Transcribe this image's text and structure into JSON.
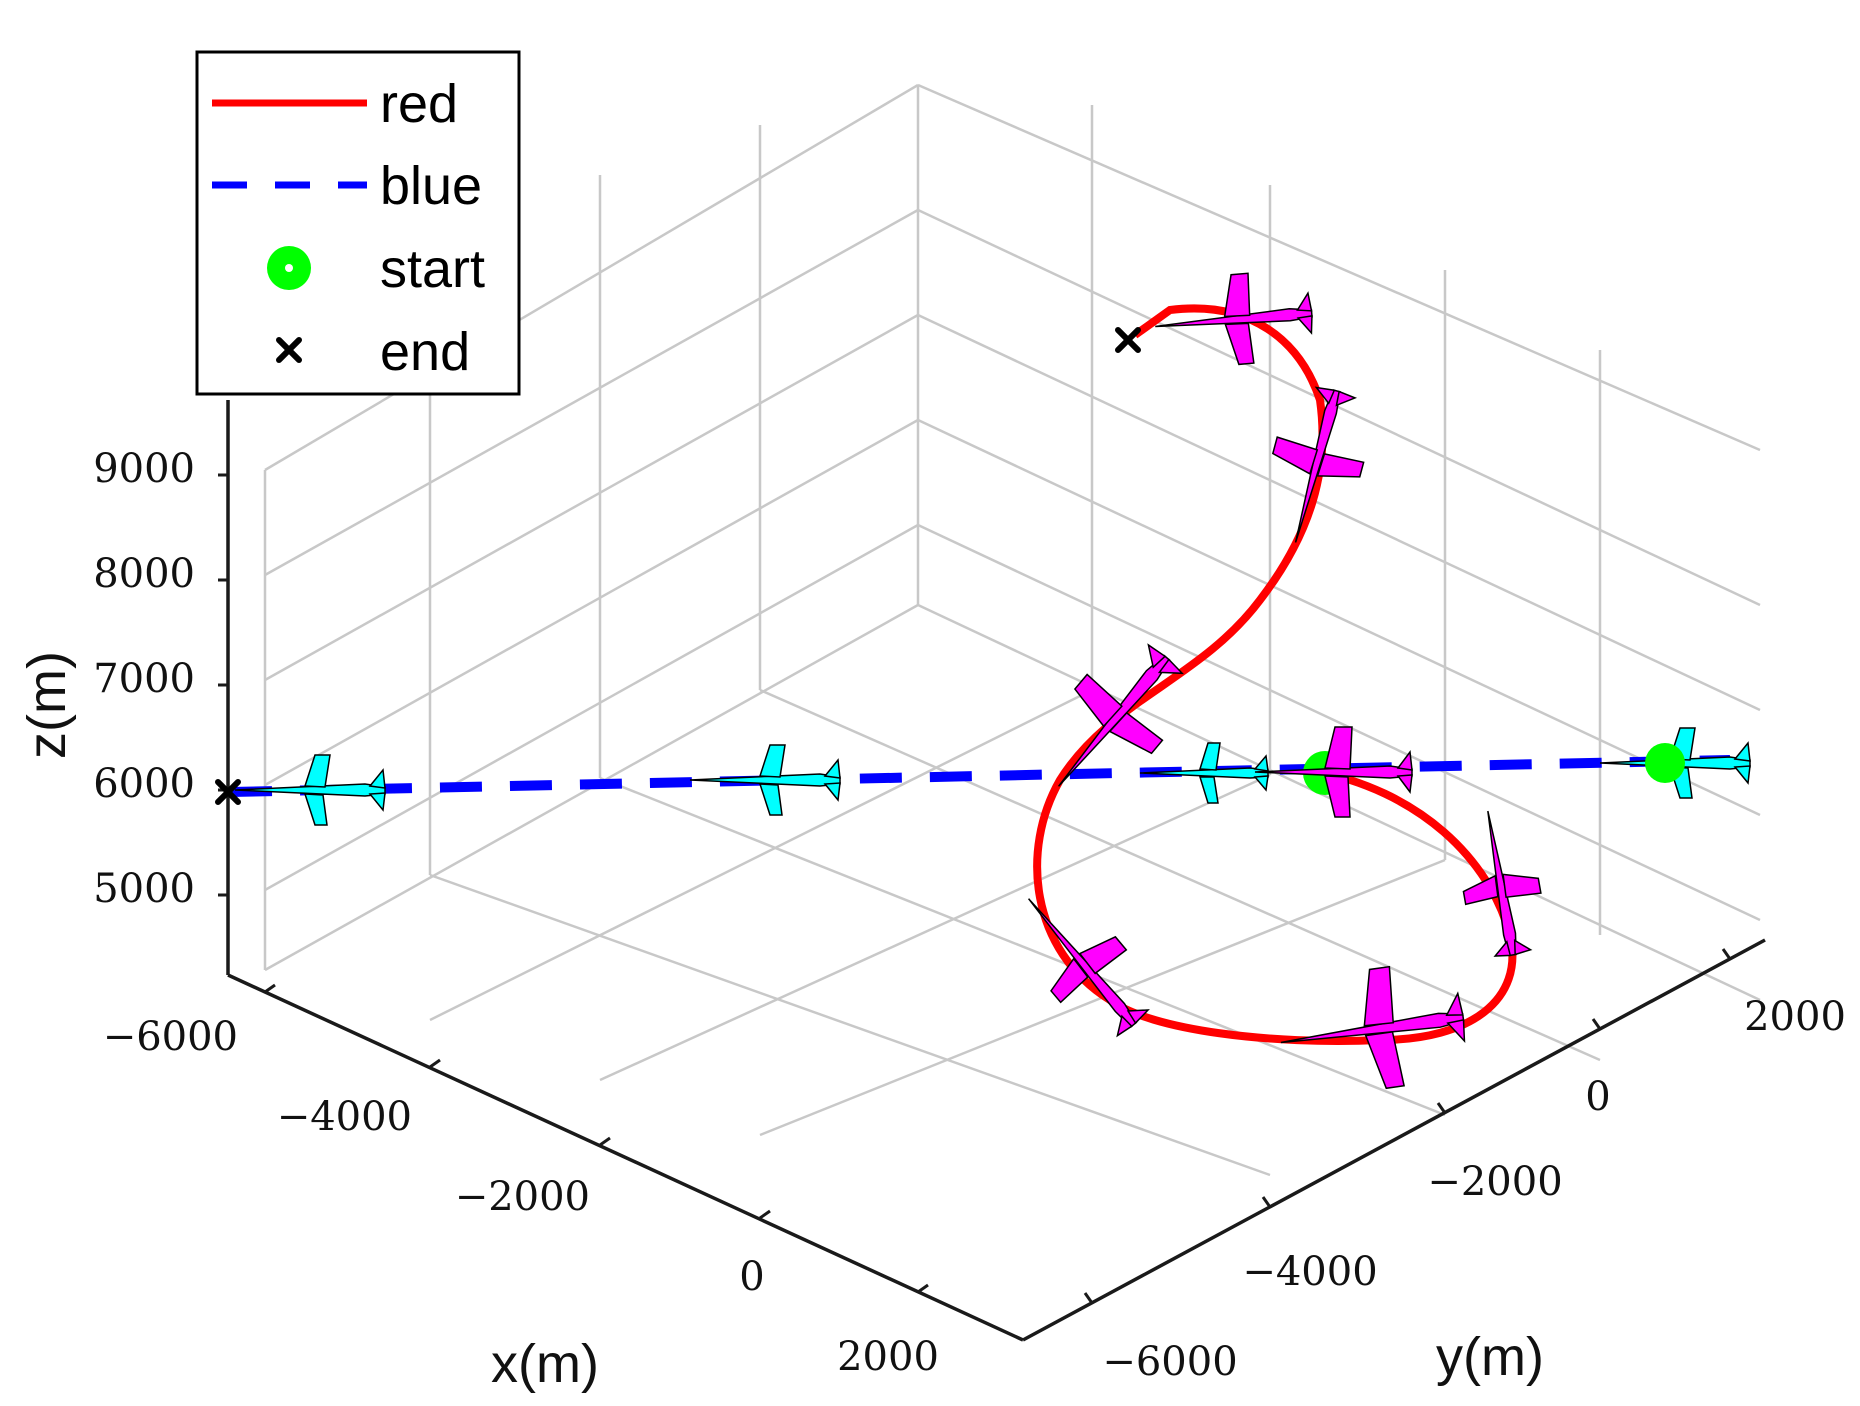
{
  "chart_data": {
    "type": "line3d",
    "view": "perspective 3D, viewed from +x +y quadrant",
    "xlabel": "x(m)",
    "ylabel": "y(m)",
    "zlabel": "z(m)",
    "xlim": [
      -7000,
      3000
    ],
    "ylim": [
      -7000,
      3000
    ],
    "zlim": [
      4000,
      10000
    ],
    "x_ticks": [
      "−6000",
      "−4000",
      "−2000",
      "0",
      "2000"
    ],
    "y_ticks": [
      "−6000",
      "−4000",
      "−2000",
      "0",
      "2000"
    ],
    "z_ticks": [
      "5000",
      "6000",
      "7000",
      "8000",
      "9000"
    ],
    "grid": true,
    "legend": {
      "placement": "top-left",
      "entries": [
        {
          "label": "red",
          "style": "solid-line",
          "color": "#ff0000"
        },
        {
          "label": "blue",
          "style": "dashed-line",
          "color": "#0000ff"
        },
        {
          "label": "start",
          "style": "circle-marker",
          "color": "#00ff00"
        },
        {
          "label": "end",
          "style": "x-marker",
          "color": "#000000"
        }
      ]
    },
    "series": [
      {
        "name": "red",
        "color": "#ff0000",
        "aircraft_color": "#ff00ff",
        "description": "climbing S-shaped trajectory: starts at ~6000 m, loops down around, then climbs to ~9500 m",
        "approx_altitude_range_m": [
          5000,
          9500
        ]
      },
      {
        "name": "blue",
        "color": "#0000ff",
        "aircraft_color": "#00ffff",
        "description": "straight level trajectory at ~6000 m",
        "approx_altitude_m": 6000
      }
    ]
  }
}
